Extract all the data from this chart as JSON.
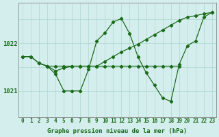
{
  "title": "Graphe pression niveau de la mer (hPa)",
  "bg_color": "#d4eeed",
  "plot_bg_color": "#d4eeed",
  "line_color": "#1a6b1a",
  "grid_color_v": "#b0d8cc",
  "grid_color_h": "#b0d8cc",
  "ylim": [
    1020.45,
    1022.85
  ],
  "yticks": [
    1021,
    1022
  ],
  "xlim": [
    -0.5,
    23.5
  ],
  "xticks": [
    0,
    1,
    2,
    3,
    4,
    5,
    6,
    7,
    8,
    9,
    10,
    11,
    12,
    13,
    14,
    15,
    16,
    17,
    18,
    19,
    20,
    21,
    22,
    23
  ],
  "series1_x": [
    0,
    1,
    2,
    3,
    4,
    5,
    6,
    7,
    8,
    9,
    10,
    11,
    12,
    13,
    14,
    15,
    16,
    17,
    18,
    19,
    20,
    21,
    22,
    23
  ],
  "series1_y": [
    1021.72,
    1021.72,
    1021.58,
    1021.52,
    1021.52,
    1021.52,
    1021.52,
    1021.52,
    1021.52,
    1021.52,
    1021.62,
    1021.72,
    1021.82,
    1021.9,
    1021.98,
    1022.08,
    1022.18,
    1022.28,
    1022.38,
    1022.48,
    1022.55,
    1022.58,
    1022.62,
    1022.65
  ],
  "series2_x": [
    0,
    1,
    2,
    3,
    4,
    5,
    6,
    7,
    8,
    9,
    10,
    11,
    12,
    13,
    14,
    15,
    16,
    17,
    18,
    19,
    20,
    21,
    22,
    23
  ],
  "series2_y": [
    1021.72,
    1021.72,
    1021.58,
    1021.52,
    1021.35,
    1021.0,
    1021.0,
    1021.0,
    1021.45,
    1022.05,
    1022.22,
    1022.45,
    1022.52,
    1022.2,
    1021.72,
    1021.38,
    1021.12,
    1020.85,
    1020.78,
    1021.55,
    1021.95,
    1022.05,
    1022.55,
    1022.65
  ],
  "series3_x": [
    2,
    3,
    4,
    5,
    6,
    7,
    8,
    9,
    10,
    11,
    12,
    13,
    14,
    15,
    16,
    17,
    18,
    19
  ],
  "series3_y": [
    1021.58,
    1021.52,
    1021.42,
    1021.48,
    1021.52,
    1021.52,
    1021.52,
    1021.52,
    1021.52,
    1021.52,
    1021.52,
    1021.52,
    1021.52,
    1021.52,
    1021.52,
    1021.52,
    1021.52,
    1021.52
  ],
  "xlabel_fontsize": 5.5,
  "ylabel_fontsize": 6.5,
  "title_fontsize": 6.5
}
